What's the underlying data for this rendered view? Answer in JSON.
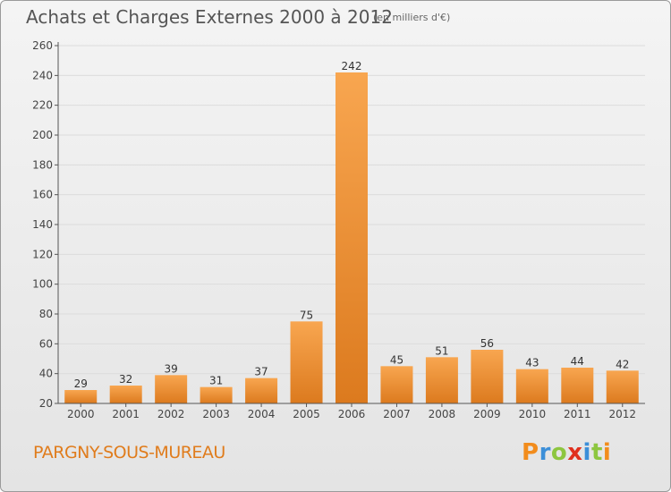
{
  "header": {
    "title": "Achats et Charges Externes 2000 à 2012",
    "subtitle": "(en milliers d'€)"
  },
  "footer": {
    "commune": "PARGNY-SOUS-MUREAU",
    "logo_text": "Proxiti",
    "logo_letters": [
      "P",
      "r",
      "o",
      "x",
      "i",
      "t",
      "i"
    ],
    "logo_colors": [
      "#f28c1c",
      "#3c8fd8",
      "#8dc63f",
      "#e0301e",
      "#3c8fd8",
      "#8dc63f",
      "#f28c1c"
    ]
  },
  "colors": {
    "bar_light": "#f8a650",
    "bar_dark": "#dc7a1e",
    "axis": "#555555",
    "grid": "#dcdcdc"
  },
  "chart_data": {
    "type": "bar",
    "title": "Achats et Charges Externes 2000 à 2012",
    "subtitle": "(en milliers d'€)",
    "xlabel": "",
    "ylabel": "",
    "categories": [
      "2000",
      "2001",
      "2002",
      "2003",
      "2004",
      "2005",
      "2006",
      "2007",
      "2008",
      "2009",
      "2010",
      "2011",
      "2012"
    ],
    "values": [
      29,
      32,
      39,
      31,
      37,
      75,
      242,
      45,
      51,
      56,
      43,
      44,
      42
    ],
    "ylim": [
      20,
      260
    ],
    "yticks": [
      20,
      40,
      60,
      80,
      100,
      120,
      140,
      160,
      180,
      200,
      220,
      240,
      260
    ],
    "grid": true
  }
}
